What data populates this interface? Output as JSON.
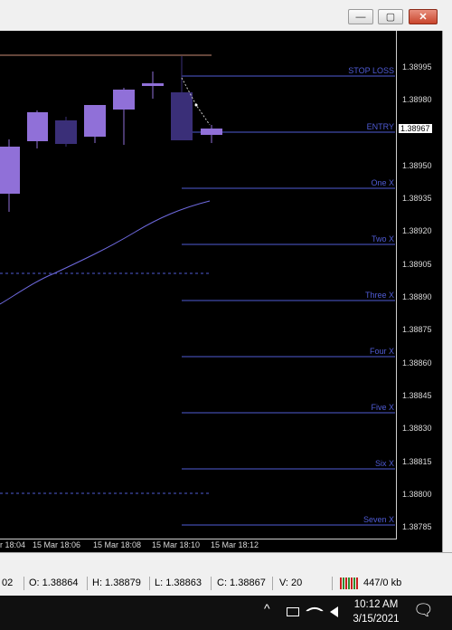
{
  "window": {
    "minimize_glyph": "—",
    "maximize_glyph": "▢",
    "close_glyph": "✕"
  },
  "price_axis": {
    "ticks": [
      "1.38995",
      "1.38980",
      "1.38965",
      "1.38950",
      "1.38935",
      "1.38920",
      "1.38905",
      "1.38890",
      "1.38875",
      "1.38860",
      "1.38845",
      "1.38830",
      "1.38815",
      "1.38800",
      "1.38785"
    ],
    "current_price": "1.38967"
  },
  "time_axis": {
    "labels": [
      "r 18:04",
      "15 Mar 18:06",
      "15 Mar 18:08",
      "15 Mar 18:10",
      "15 Mar 18:12"
    ]
  },
  "levels": [
    {
      "name": "stop-loss",
      "label": "STOP LOSS"
    },
    {
      "name": "entry",
      "label": "ENTRY"
    },
    {
      "name": "one-x",
      "label": "One X"
    },
    {
      "name": "two-x",
      "label": "Two X"
    },
    {
      "name": "three-x",
      "label": "Three X"
    },
    {
      "name": "four-x",
      "label": "Four X"
    },
    {
      "name": "five-x",
      "label": "Five X"
    },
    {
      "name": "six-x",
      "label": "Six X"
    },
    {
      "name": "seven-x",
      "label": "Seven X"
    }
  ],
  "status": {
    "time_fragment": "02",
    "open": "O: 1.38864",
    "high": "H: 1.38879",
    "low": "L: 1.38863",
    "close": "C: 1.38867",
    "volume": "V: 20",
    "traffic": "447/0 kb"
  },
  "taskbar": {
    "time": "10:12 AM",
    "date": "3/15/2021",
    "chevron_glyph": "^",
    "notification_glyph": "🗨"
  },
  "colors": {
    "candle_bull": "#9070d8",
    "candle_bear": "#3a2f78",
    "level_line": "#4f5bd5",
    "stop_line": "#c78a73",
    "ma_line": "#6f6ae0"
  }
}
